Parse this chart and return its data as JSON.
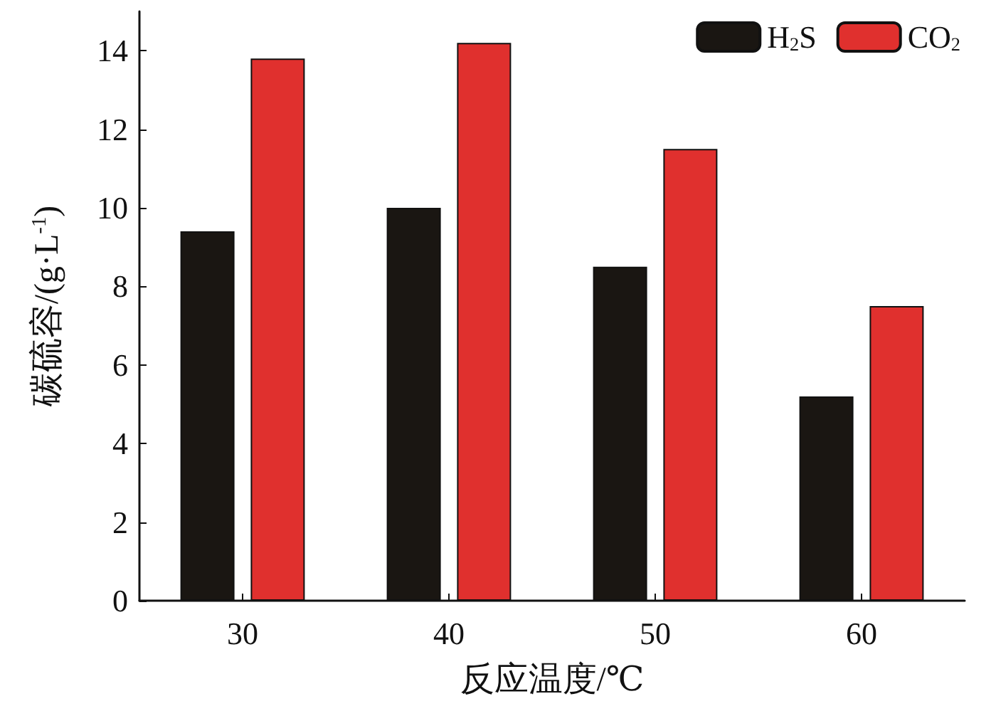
{
  "chart_data": {
    "type": "bar",
    "xlabel": "反应温度/℃",
    "ylabel": "碳硫容/(g·L$^{-1}$)",
    "categories": [
      "30",
      "40",
      "50",
      "60"
    ],
    "series": [
      {
        "name": "H$_{2}$S",
        "color": "#1a1612",
        "values": [
          9.4,
          10.0,
          8.5,
          5.2
        ]
      },
      {
        "name": "CO$_{2}$",
        "color": "#e0302e",
        "values": [
          13.8,
          14.2,
          11.5,
          7.5
        ]
      }
    ],
    "ylim": [
      0,
      15
    ],
    "yticks": [
      0,
      2,
      4,
      6,
      8,
      10,
      12,
      14
    ],
    "grid": false,
    "legend": "top right"
  }
}
